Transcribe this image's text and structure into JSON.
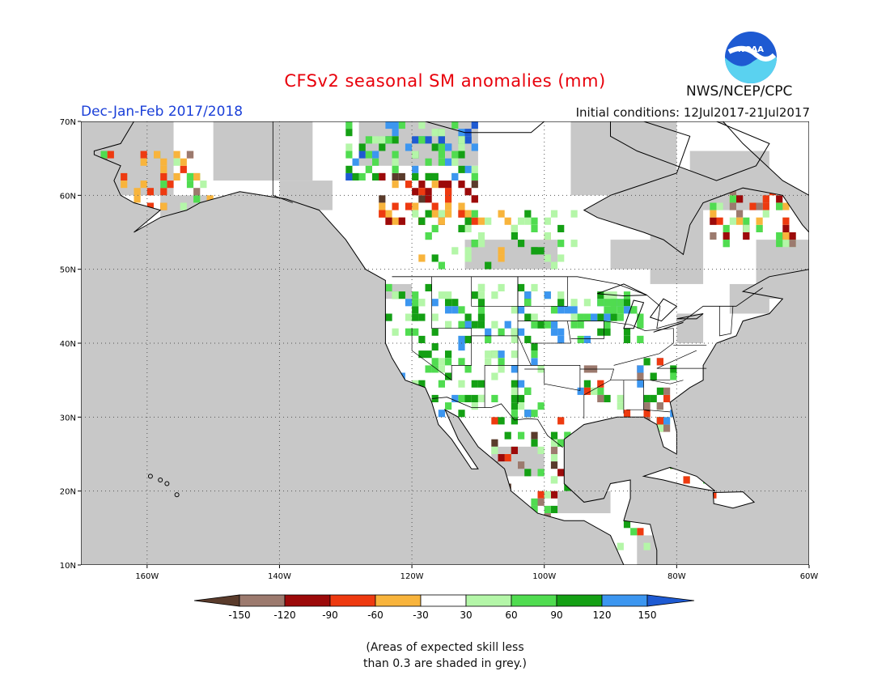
{
  "title": "CFSv2 seasonal SM anomalies (mm)",
  "season": "Dec-Jan-Feb 2017/2018",
  "initial_conditions": "Initial conditions: 12Jul2017-21Jul2017",
  "agency": "NWS/NCEP/CPC",
  "logo_text": "NOAA",
  "note_line1": "(Areas of expected skill less",
  "note_line2": "than 0.3 are shaded in grey.)",
  "lat_labels": [
    "70N",
    "60N",
    "50N",
    "40N",
    "30N",
    "20N",
    "10N"
  ],
  "lon_labels": [
    "160W",
    "140W",
    "120W",
    "100W",
    "80W",
    "60W"
  ],
  "colorbar": {
    "ticks": [
      "-150",
      "-120",
      "-90",
      "-60",
      "-30",
      "30",
      "60",
      "90",
      "120",
      "150"
    ],
    "colors": [
      "#5a3b2b",
      "#9c7a6e",
      "#9c0a0a",
      "#ee3a10",
      "#f8b43c",
      "#ffffff",
      "#b4f6a8",
      "#50dc50",
      "#14a014",
      "#3c96f0",
      "#1e5ad2"
    ]
  },
  "colors": {
    "grey_mask": "#c8c8c8",
    "land_no_signal": "#ffffff",
    "title": "#e8000b",
    "season": "#1a3fd8"
  }
}
